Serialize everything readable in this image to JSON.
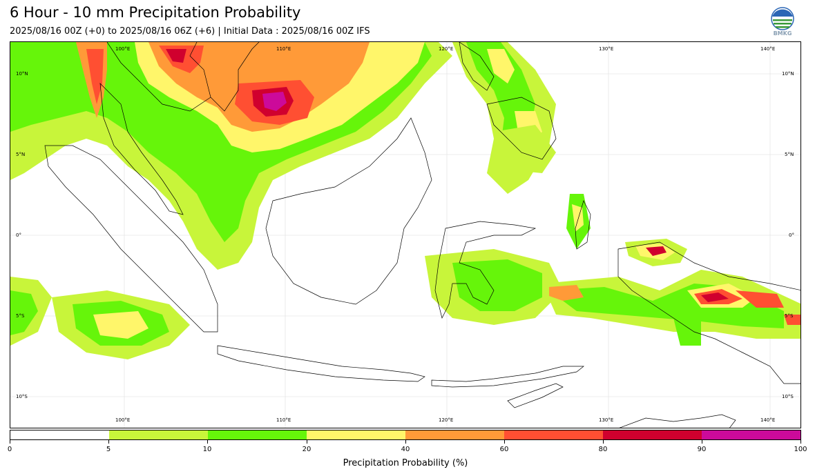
{
  "header": {
    "title": "6 Hour - 10 mm Precipitation Probability",
    "subtitle": "2025/08/16 00Z (+0) to 2025/08/16 06Z (+6) | Initial Data : 2025/08/16 00Z IFS"
  },
  "logo": {
    "text": "BMKG",
    "icon": "bmkg-logo"
  },
  "map": {
    "lon_labels_top": [
      "100°E",
      "110°E",
      "120°E",
      "130°E",
      "140°E"
    ],
    "lon_labels_bottom": [
      "100°E",
      "110°E",
      "120°E",
      "130°E",
      "140°E"
    ],
    "lat_labels_left": [
      "10°N",
      "5°N",
      "0°",
      "5°S",
      "10°S"
    ],
    "lat_labels_right": [
      "10°N",
      "5°N",
      "0°",
      "5°S",
      "10°S"
    ]
  },
  "colorbar": {
    "title": "Precipitation Probability (%)",
    "ticks": [
      "0",
      "5",
      "10",
      "20",
      "40",
      "60",
      "80",
      "90",
      "100"
    ],
    "colors": [
      "#ffffff",
      "#c8f53a",
      "#66f50a",
      "#fff66a",
      "#ff9a38",
      "#ff4f32",
      "#d0002e",
      "#cc0a9a"
    ]
  }
}
